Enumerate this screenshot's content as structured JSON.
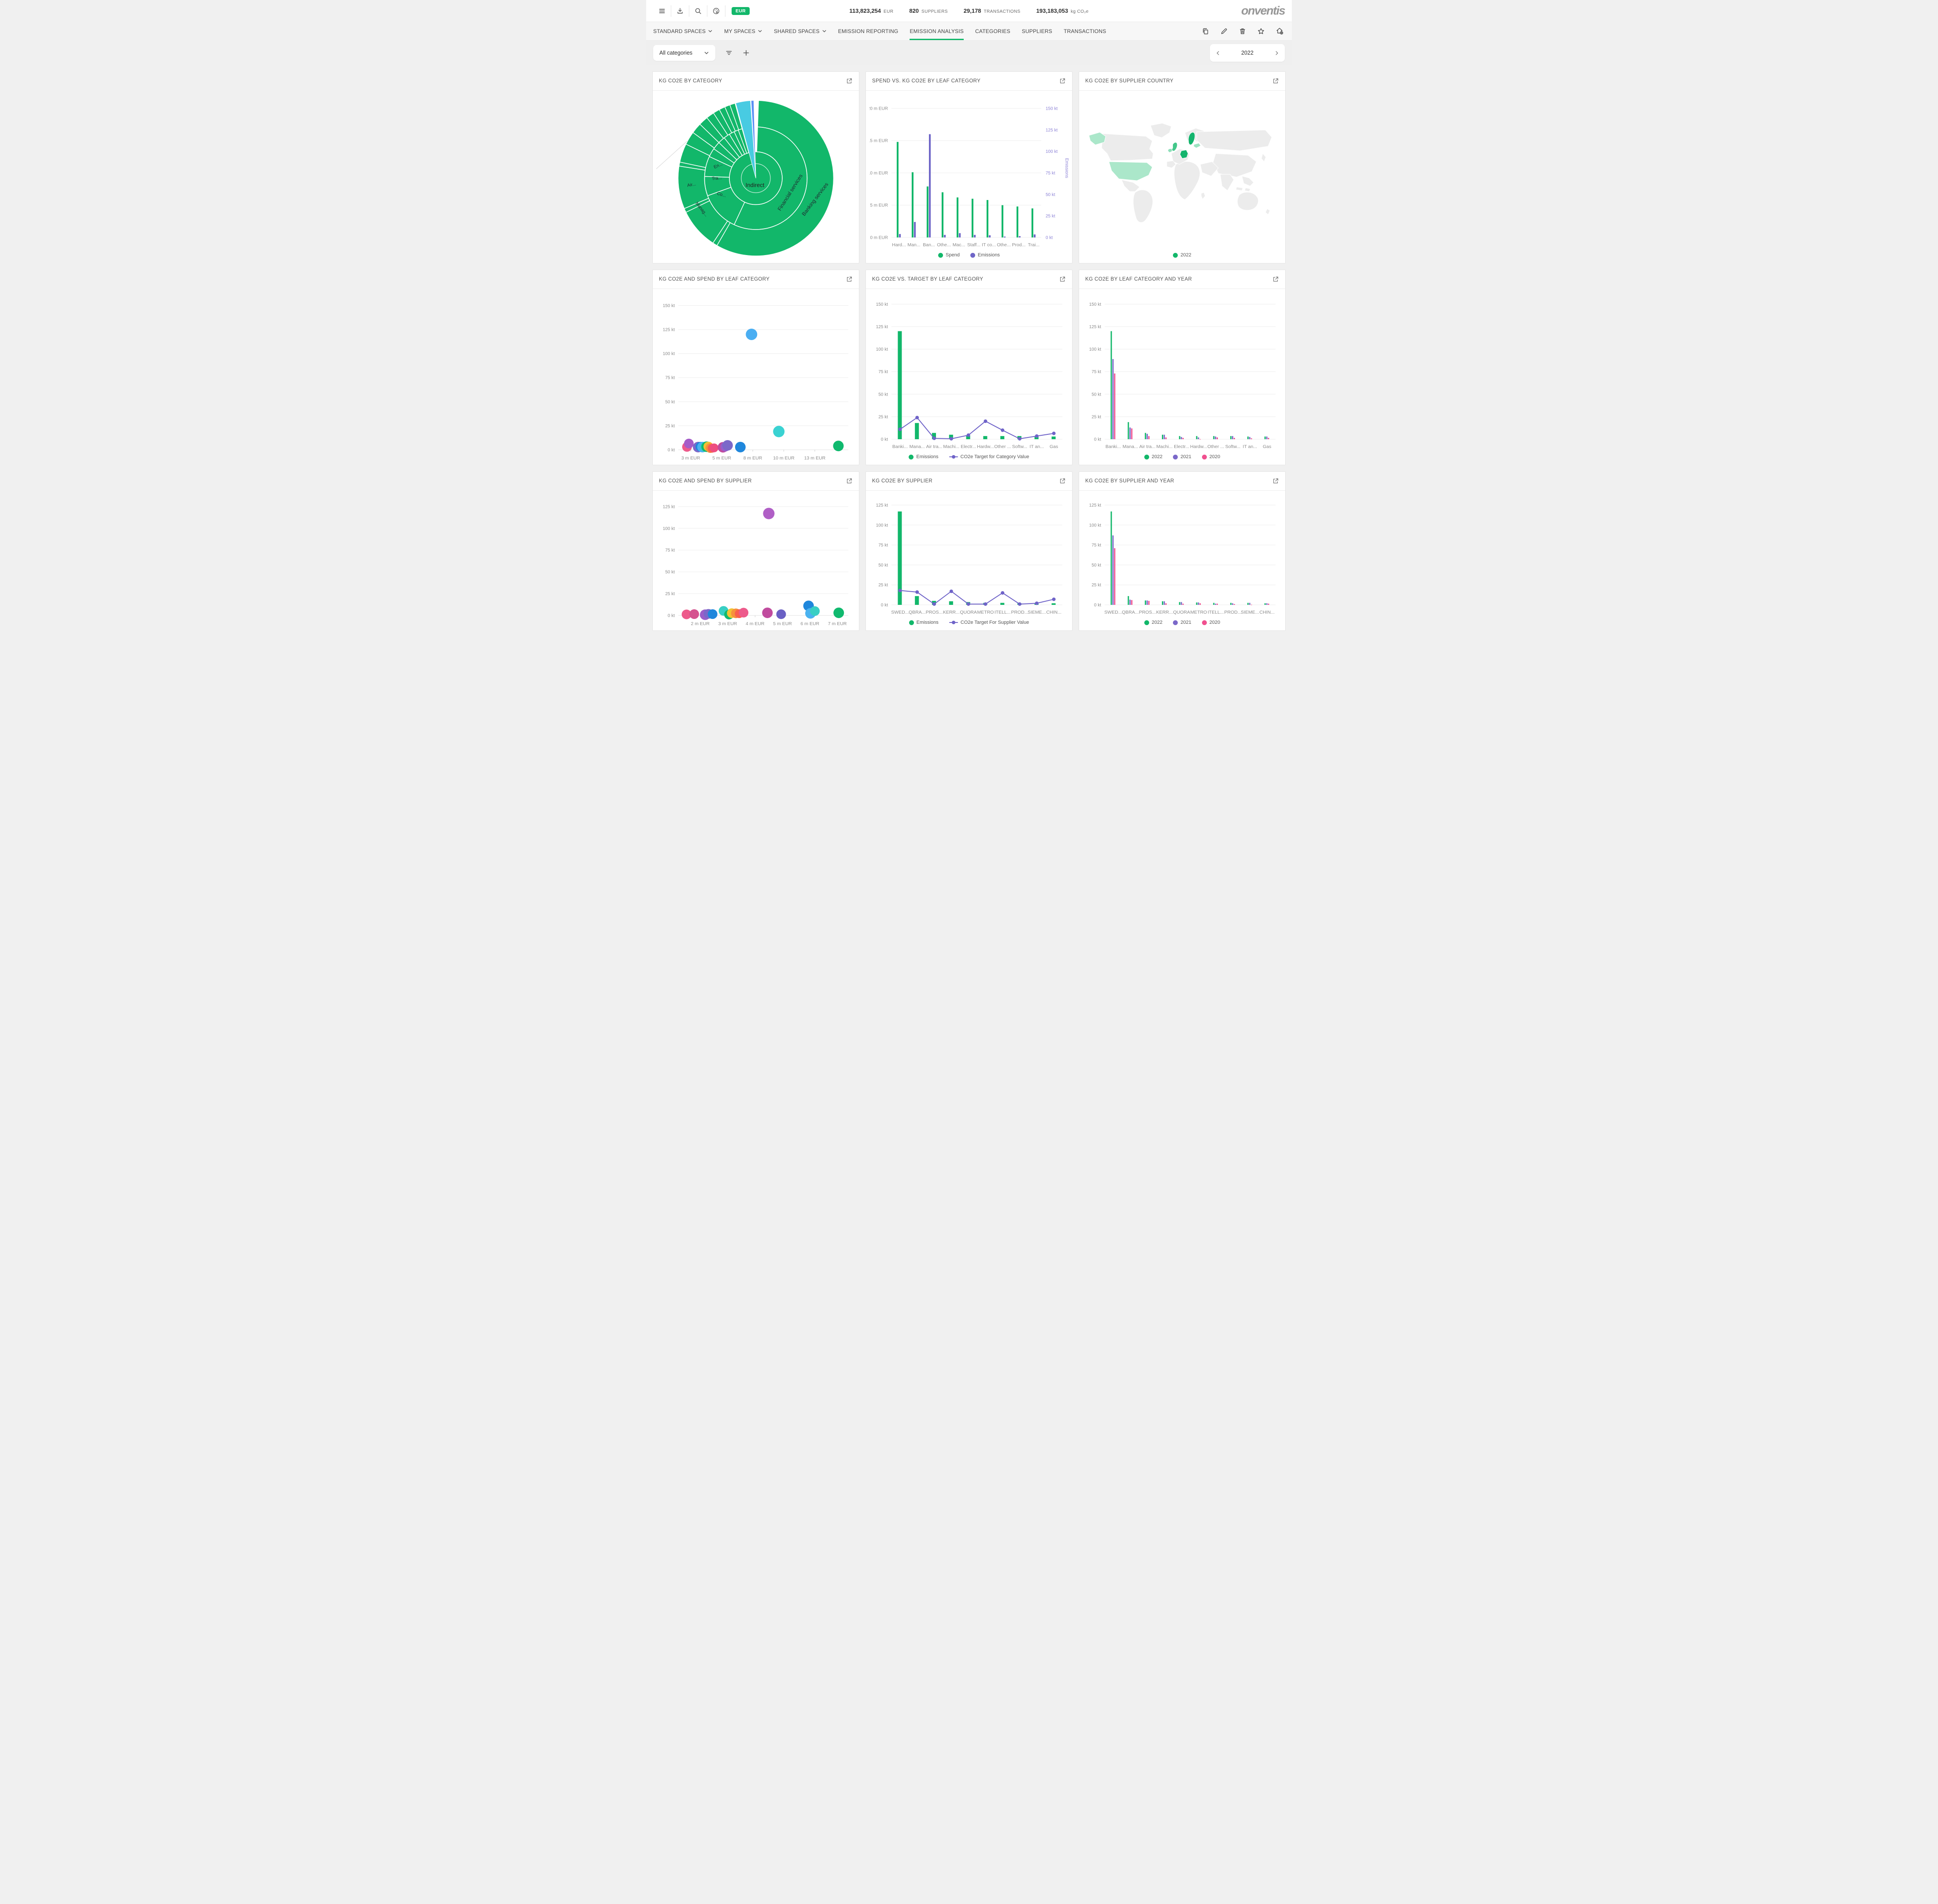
{
  "topbar": {
    "currency": "EUR",
    "stats": [
      {
        "value": "113,823,254",
        "label": "EUR"
      },
      {
        "value": "820",
        "label": "SUPPLIERS"
      },
      {
        "value": "29,178",
        "label": "TRANSACTIONS"
      },
      {
        "value": "193,183,053",
        "label": "kg CO₂e"
      }
    ],
    "logo": "onventis"
  },
  "nav": {
    "tabs": [
      {
        "label": "STANDARD SPACES",
        "dropdown": true
      },
      {
        "label": "MY SPACES",
        "dropdown": true
      },
      {
        "label": "SHARED SPACES",
        "dropdown": true
      },
      {
        "label": "EMISSION REPORTING",
        "dropdown": false
      },
      {
        "label": "EMISSION ANALYSIS",
        "dropdown": false
      },
      {
        "label": "CATEGORIES",
        "dropdown": false
      },
      {
        "label": "SUPPLIERS",
        "dropdown": false
      },
      {
        "label": "TRANSACTIONS",
        "dropdown": false
      }
    ],
    "active_tab": "EMISSION ANALYSIS"
  },
  "filterbar": {
    "category_filter": "All categories",
    "year": "2022"
  },
  "chart_data": [
    {
      "type": "sunburst",
      "title": "KG CO2E BY CATEGORY",
      "green": "#12b76a",
      "cyan": "#48cbe2",
      "blue": "#5b8ff5",
      "center_label": "Indirect",
      "ring1": [
        [
          2,
          205
        ],
        [
          205,
          250
        ],
        [
          250,
          272
        ],
        [
          272,
          295
        ],
        [
          295,
          305
        ],
        [
          305,
          314
        ],
        [
          314,
          322
        ],
        [
          322,
          329
        ],
        [
          329,
          335
        ],
        [
          335,
          340
        ],
        [
          340,
          344.5
        ]
      ],
      "ring2": [
        [
          2,
          210
        ],
        [
          210,
          213.5
        ],
        [
          213.5,
          244
        ],
        [
          244,
          247
        ],
        [
          247,
          279
        ],
        [
          279,
          282
        ],
        [
          282,
          296
        ],
        [
          296,
          306
        ],
        [
          306,
          314
        ],
        [
          314,
          321
        ],
        [
          321,
          327
        ],
        [
          327,
          332
        ],
        [
          332,
          336.5
        ],
        [
          336.5,
          340.5
        ],
        [
          340.5,
          344.5
        ]
      ],
      "wedges": [
        {
          "from": 345,
          "to": 356,
          "color": "#48cbe2"
        },
        {
          "from": 356.5,
          "to": 358.5,
          "color": "#5b8ff5"
        }
      ],
      "labels": [
        {
          "text": "Financial services",
          "angle": 113,
          "rfrac": 0.5,
          "rotate": -58,
          "size": 12
        },
        {
          "text": "Banking services",
          "angle": 110,
          "rfrac": 0.83,
          "rotate": -53,
          "size": 12
        },
        {
          "text": "En...",
          "angle": 287,
          "rfrac": 0.5,
          "rotate": -24,
          "size": 10
        },
        {
          "text": "Tra...",
          "angle": 268,
          "rfrac": 0.5,
          "rotate": -6,
          "size": 10
        },
        {
          "text": "Co...",
          "angle": 243,
          "rfrac": 0.5,
          "rotate": 16,
          "size": 10
        },
        {
          "text": "Air...",
          "angle": 263,
          "rfrac": 0.83,
          "rotate": -10,
          "size": 10
        },
        {
          "text": "Manag...",
          "angle": 240,
          "rfrac": 0.82,
          "rotate": 52,
          "size": 10
        }
      ]
    },
    {
      "type": "dualbar",
      "title": "SPEND VS. KG CO2E BY LEAF CATEGORY",
      "categories": [
        "Hard...",
        "Man...",
        "Ban...",
        "Othe...",
        "Mac...",
        "Staff...",
        "IT co...",
        "Othe...",
        "Prod...",
        "Trai..."
      ],
      "ymax": 21.5,
      "yticks": [
        0,
        5,
        10,
        15,
        20
      ],
      "ytick_labels": [
        "0 m EUR",
        "5 m EUR",
        "10 m EUR",
        "15 m EUR",
        "20 m EUR"
      ],
      "right_ticks": [
        0,
        25,
        50,
        75,
        100,
        125,
        150
      ],
      "right_tick_labels": [
        "0 kt",
        "25 kt",
        "50 kt",
        "75 kt",
        "100 kt",
        "125 kt",
        "150 kt"
      ],
      "right_scale": 0.13333,
      "right_axis_label": "Emissions",
      "series": [
        {
          "name": "Spend",
          "color": "#12b76a",
          "values": [
            14.8,
            10.1,
            7.9,
            7.0,
            6.2,
            6.0,
            5.8,
            5.0,
            4.8,
            4.5
          ]
        },
        {
          "name": "Emissions",
          "color": "#6f66c7",
          "scale": 0.13333,
          "values": [
            4,
            18,
            120,
            3,
            5,
            3,
            2.5,
            1,
            1.5,
            3.5
          ]
        }
      ],
      "legend": [
        {
          "label": "Spend",
          "color": "#12b76a"
        },
        {
          "label": "Emissions",
          "color": "#6f66c7"
        }
      ]
    },
    {
      "type": "map",
      "title": "KG CO2E BY SUPPLIER COUNTRY",
      "land": "#ececec",
      "highlighted_countries": [
        "United States",
        "Alaska (US)",
        "Sweden",
        "Germany",
        "United Kingdom",
        "Ireland",
        "Baltics"
      ],
      "highlights": {
        "alaska": "#abe7ca",
        "usa": "#abe7ca",
        "sweden": "#14b46d",
        "germany": "#14b46d",
        "uk": "#43c78a",
        "ireland": "#8fdfba",
        "baltics": "#9de3c2"
      },
      "legend": [
        {
          "label": "2022",
          "color": "#12b76a"
        }
      ]
    },
    {
      "type": "bubble",
      "title": "KG CO2E AND SPEND BY LEAF CATEGORY",
      "ymax": 158,
      "yticks": [
        0,
        25,
        50,
        75,
        100,
        125,
        150
      ],
      "ytick_labels": [
        "0 kt",
        "25 kt",
        "50 kt",
        "75 kt",
        "100 kt",
        "125 kt",
        "150 kt"
      ],
      "xmin": 2.0,
      "xmax": 15.7,
      "xticks": [
        3,
        5.5,
        8,
        10.5,
        13
      ],
      "xtick_labels": [
        "3 m EUR",
        "5 m EUR",
        "8 m EUR",
        "10 m EUR",
        "13 m EUR"
      ],
      "points": [
        {
          "x": 2.7,
          "y": 3,
          "r": 11,
          "color": "#ed5a8b"
        },
        {
          "x": 2.85,
          "y": 6.5,
          "r": 11,
          "color": "#a55cc8"
        },
        {
          "x": 3.6,
          "y": 2.8,
          "r": 12,
          "color": "#7b68c9"
        },
        {
          "x": 3.78,
          "y": 3.2,
          "r": 11,
          "color": "#1f87dc"
        },
        {
          "x": 3.95,
          "y": 2.8,
          "r": 12,
          "color": "#4ab2f0"
        },
        {
          "x": 4.12,
          "y": 2.8,
          "r": 10,
          "color": "#38cfc4"
        },
        {
          "x": 4.28,
          "y": 3.2,
          "r": 12,
          "color": "#10b96e"
        },
        {
          "x": 4.42,
          "y": 3.4,
          "r": 11,
          "color": "#f2c233"
        },
        {
          "x": 4.58,
          "y": 1.8,
          "r": 11,
          "color": "#f6923c"
        },
        {
          "x": 4.72,
          "y": 1.6,
          "r": 10,
          "color": "#f9604d"
        },
        {
          "x": 4.88,
          "y": 2.0,
          "r": 10,
          "color": "#ee4d7f"
        },
        {
          "x": 5.6,
          "y": 2.6,
          "r": 12,
          "color": "#c04b9e"
        },
        {
          "x": 5.78,
          "y": 3.2,
          "r": 11,
          "color": "#9a5ec9"
        },
        {
          "x": 5.97,
          "y": 4.6,
          "r": 12,
          "color": "#7b68c9"
        },
        {
          "x": 7.0,
          "y": 2.8,
          "r": 12,
          "color": "#1f87dc"
        },
        {
          "x": 7.9,
          "y": 120,
          "r": 13,
          "color": "#4aaef2"
        },
        {
          "x": 10.1,
          "y": 19,
          "r": 13,
          "color": "#3ad2d2"
        },
        {
          "x": 14.9,
          "y": 4,
          "r": 12,
          "color": "#10b96e"
        }
      ]
    },
    {
      "type": "barline",
      "title": "KG CO2E VS. TARGET BY LEAF CATEGORY",
      "categories": [
        "Banki...",
        "Mana...",
        "Air tra...",
        "Machi...",
        "Electr...",
        "Hardw...",
        "Other ...",
        "Softw...",
        "IT an...",
        "Gas"
      ],
      "ymax": 158,
      "yticks": [
        0,
        25,
        50,
        75,
        100,
        125,
        150
      ],
      "ytick_labels": [
        "0 kt",
        "25 kt",
        "50 kt",
        "75 kt",
        "100 kt",
        "125 kt",
        "150 kt"
      ],
      "series": [
        {
          "name": "Emissions",
          "color": "#12b76a",
          "values": [
            120,
            18,
            7,
            5,
            4,
            3.5,
            3.5,
            3.5,
            3,
            3
          ]
        },
        {
          "name": "CO2e Target for Category Value",
          "color": "#6f63c8",
          "line": true,
          "values": [
            11,
            24,
            1,
            0.5,
            4.5,
            20,
            10,
            0.5,
            3.5,
            6.5
          ]
        }
      ],
      "legend": [
        {
          "label": "Emissions",
          "color": "#12b76a"
        },
        {
          "label": "CO2e Target for Category Value",
          "color": "#6f63c8",
          "line": true
        }
      ]
    },
    {
      "type": "barline",
      "title": "KG CO2E BY LEAF CATEGORY AND YEAR",
      "categories": [
        "Banki...",
        "Mana...",
        "Air tra...",
        "Machi...",
        "Electr...",
        "Hardw...",
        "Other ...",
        "Softw...",
        "IT an...",
        "Gas"
      ],
      "ymax": 158,
      "yticks": [
        0,
        25,
        50,
        75,
        100,
        125,
        150
      ],
      "ytick_labels": [
        "0 kt",
        "25 kt",
        "50 kt",
        "75 kt",
        "100 kt",
        "125 kt",
        "150 kt"
      ],
      "series": [
        {
          "name": "2022",
          "color": "#12b76a",
          "values": [
            120,
            19,
            7,
            5,
            3.5,
            3.5,
            3.5,
            3.5,
            3,
            3
          ]
        },
        {
          "name": "2021",
          "color": "#7b68c9",
          "values": [
            89,
            13,
            6,
            5,
            2.5,
            2,
            3,
            3.5,
            2.5,
            3
          ]
        },
        {
          "name": "2020",
          "color": "#f0508f",
          "values": [
            73,
            12,
            3.5,
            2,
            1.5,
            0.2,
            2,
            1.5,
            1,
            1.5
          ]
        }
      ],
      "legend": [
        {
          "label": "2022",
          "color": "#12b76a"
        },
        {
          "label": "2021",
          "color": "#7b68c9"
        },
        {
          "label": "2020",
          "color": "#f0508f"
        }
      ]
    },
    {
      "type": "bubble",
      "title": "KG CO2E AND SPEND BY SUPPLIER",
      "ymax": 133,
      "yticks": [
        0,
        25,
        50,
        75,
        100,
        125
      ],
      "ytick_labels": [
        "0 kt",
        "25 kt",
        "50 kt",
        "75 kt",
        "100 kt",
        "125 kt"
      ],
      "xmin": 1.2,
      "xmax": 7.4,
      "xticks": [
        2,
        3,
        4,
        5,
        6,
        7
      ],
      "xtick_labels": [
        "2 m EUR",
        "3 m EUR",
        "4 m EUR",
        "5 m EUR",
        "6 m EUR",
        "7 m EUR"
      ],
      "points": [
        {
          "x": 1.5,
          "y": 1.2,
          "r": 11,
          "color": "#ed5a8b"
        },
        {
          "x": 1.78,
          "y": 1.5,
          "r": 11,
          "color": "#d5538f"
        },
        {
          "x": 2.18,
          "y": 0.8,
          "r": 12,
          "color": "#9a5ec9"
        },
        {
          "x": 2.3,
          "y": 1.8,
          "r": 11,
          "color": "#7b68c9"
        },
        {
          "x": 2.45,
          "y": 1.5,
          "r": 11,
          "color": "#1f87dc"
        },
        {
          "x": 2.85,
          "y": 5.2,
          "r": 11,
          "color": "#38cfc4"
        },
        {
          "x": 3.05,
          "y": 1.0,
          "r": 11,
          "color": "#10b96e"
        },
        {
          "x": 3.15,
          "y": 2.6,
          "r": 11,
          "color": "#f2c233"
        },
        {
          "x": 3.3,
          "y": 2.4,
          "r": 11,
          "color": "#f6923c"
        },
        {
          "x": 3.42,
          "y": 2.0,
          "r": 10,
          "color": "#f9604d"
        },
        {
          "x": 3.58,
          "y": 3.2,
          "r": 11,
          "color": "#ed5a8b"
        },
        {
          "x": 4.45,
          "y": 3.0,
          "r": 12,
          "color": "#c04b9e"
        },
        {
          "x": 4.5,
          "y": 117,
          "r": 13,
          "color": "#b05fc6"
        },
        {
          "x": 4.95,
          "y": 1.4,
          "r": 11,
          "color": "#6a60c4"
        },
        {
          "x": 5.95,
          "y": 11,
          "r": 12,
          "color": "#1f87dc"
        },
        {
          "x": 6.02,
          "y": 2.4,
          "r": 12,
          "color": "#4ab2f0"
        },
        {
          "x": 6.18,
          "y": 5.0,
          "r": 11,
          "color": "#38cfc4"
        },
        {
          "x": 7.05,
          "y": 3.0,
          "r": 12,
          "color": "#10b96e"
        }
      ]
    },
    {
      "type": "barline",
      "title": "KG CO2E BY SUPPLIER",
      "categories": [
        "SWED...",
        "QBRA...",
        "PROS...",
        "KERR...",
        "QUORA",
        "METRO",
        "ITELL...",
        "PROD...",
        "SIEME...",
        "CHIN..."
      ],
      "ymax": 133,
      "yticks": [
        0,
        25,
        50,
        75,
        100,
        125
      ],
      "ytick_labels": [
        "0 kt",
        "25 kt",
        "50 kt",
        "75 kt",
        "100 kt",
        "125 kt"
      ],
      "series": [
        {
          "name": "Emissions",
          "color": "#12b76a",
          "values": [
            117,
            11,
            5,
            4.5,
            3.5,
            2.5,
            2.5,
            2,
            2,
            2
          ]
        },
        {
          "name": "CO2e Target For Supplier Value",
          "color": "#6f63c8",
          "line": true,
          "values": [
            18,
            16,
            1,
            17,
            1,
            1,
            15,
            1,
            2,
            7
          ]
        }
      ],
      "legend": [
        {
          "label": "Emissions",
          "color": "#12b76a"
        },
        {
          "label": "CO2e Target For Supplier Value",
          "color": "#6f63c8",
          "line": true
        }
      ]
    },
    {
      "type": "barline",
      "title": "KG CO2E BY SUPPLIER AND YEAR",
      "categories": [
        "SWED...",
        "QBRA...",
        "PROS...",
        "KERR...",
        "QUORA",
        "METRO",
        "ITELL...",
        "PROD...",
        "SIEME...",
        "CHIN..."
      ],
      "ymax": 133,
      "yticks": [
        0,
        25,
        50,
        75,
        100,
        125
      ],
      "ytick_labels": [
        "0 kt",
        "25 kt",
        "50 kt",
        "75 kt",
        "100 kt",
        "125 kt"
      ],
      "series": [
        {
          "name": "2022",
          "color": "#12b76a",
          "values": [
            117,
            11,
            5.5,
            4.5,
            3.5,
            3,
            2.5,
            2.5,
            2.5,
            2
          ]
        },
        {
          "name": "2021",
          "color": "#7b68c9",
          "values": [
            87,
            6.5,
            5.5,
            4.5,
            3.5,
            3,
            1.5,
            2,
            2.5,
            2
          ]
        },
        {
          "name": "2020",
          "color": "#f0508f",
          "values": [
            71,
            6,
            5,
            2,
            1.5,
            2,
            1.5,
            1,
            0.3,
            1.5
          ]
        }
      ],
      "legend": [
        {
          "label": "2022",
          "color": "#12b76a"
        },
        {
          "label": "2021",
          "color": "#7b68c9"
        },
        {
          "label": "2020",
          "color": "#f0508f"
        }
      ]
    }
  ]
}
